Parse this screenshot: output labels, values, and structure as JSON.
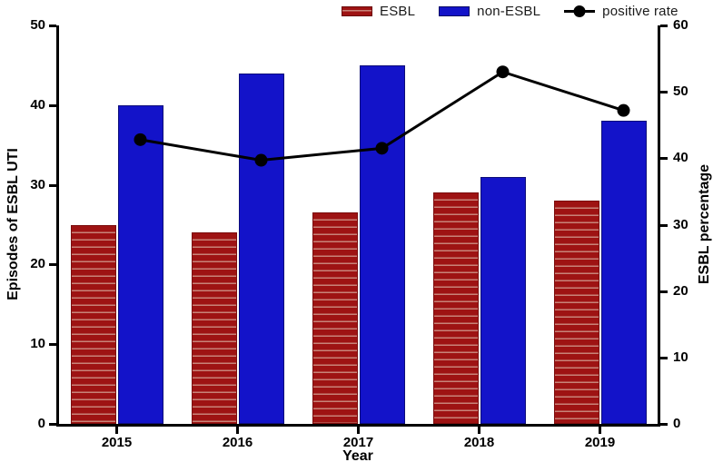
{
  "chart_data": {
    "type": "bar+line",
    "categories": [
      "2015",
      "2016",
      "2017",
      "2018",
      "2019"
    ],
    "series": [
      {
        "name": "ESBL",
        "type": "bar",
        "axis": "left",
        "color": "#9e1313",
        "pattern": "horizontal-stripes",
        "values": [
          25,
          24,
          26.5,
          29,
          28
        ]
      },
      {
        "name": "non-ESBL",
        "type": "bar",
        "axis": "left",
        "color": "#1313c9",
        "pattern": "solid",
        "values": [
          40,
          44,
          45,
          31,
          38
        ]
      },
      {
        "name": "positive rate",
        "type": "line",
        "axis": "right",
        "color": "#000000",
        "marker": "filled-circle",
        "values": [
          42.8,
          39.7,
          41.5,
          53.0,
          47.2
        ]
      }
    ],
    "xlabel": "Year",
    "ylabel_left": "Episodes of ESBL UTI",
    "ylabel_right": "ESBL percentage",
    "ylim_left": [
      0,
      50
    ],
    "ylim_right": [
      0,
      60
    ],
    "yticks_left": [
      0,
      10,
      20,
      30,
      40,
      50
    ],
    "yticks_right": [
      0,
      10,
      20,
      30,
      40,
      50,
      60
    ],
    "grid": false,
    "legend_position": "top"
  }
}
